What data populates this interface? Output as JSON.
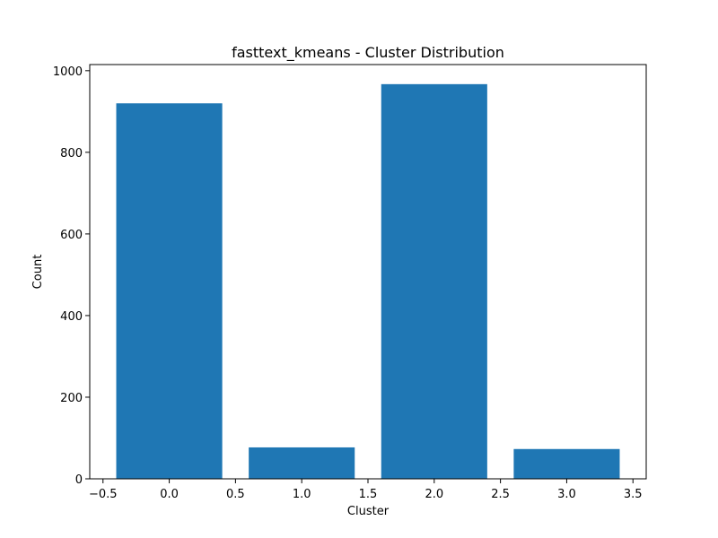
{
  "chart_data": {
    "type": "bar",
    "title": "fasttext_kmeans - Cluster Distribution",
    "xlabel": "Cluster",
    "ylabel": "Count",
    "x": [
      0,
      1,
      2,
      3
    ],
    "values": [
      920,
      77,
      967,
      73
    ],
    "bar_width": 0.8,
    "xlim": [
      -0.6,
      3.6
    ],
    "ylim": [
      0,
      1015
    ],
    "xticks": [
      -0.5,
      0.0,
      0.5,
      1.0,
      1.5,
      2.0,
      2.5,
      3.0,
      3.5
    ],
    "xtick_labels": [
      "−0.5",
      "0.0",
      "0.5",
      "1.0",
      "1.5",
      "2.0",
      "2.5",
      "3.0",
      "3.5"
    ],
    "yticks": [
      0,
      200,
      400,
      600,
      800,
      1000
    ],
    "ytick_labels": [
      "0",
      "200",
      "400",
      "600",
      "800",
      "1000"
    ],
    "grid": false,
    "bar_color": "#1f77b4"
  }
}
